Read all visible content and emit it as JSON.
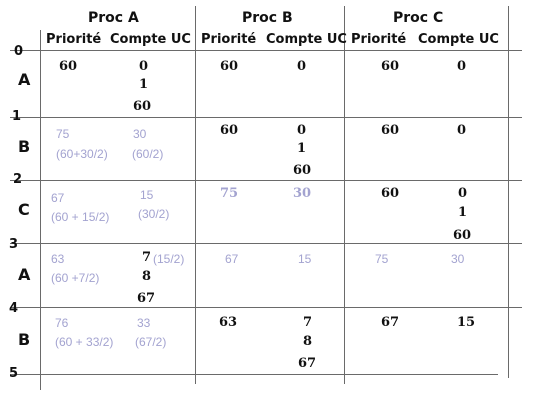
{
  "header": {
    "procs": [
      "Proc A",
      "Proc B",
      "Proc C"
    ],
    "priority_label": "Priorité",
    "cpu_label": "Compte UC"
  },
  "ticks": [
    "0",
    "1",
    "2",
    "3",
    "4",
    "5"
  ],
  "rows": [
    {
      "process": "A",
      "A": {
        "prio": [
          "60"
        ],
        "cpu": [
          "0",
          "1",
          "60"
        ]
      },
      "B": {
        "prio": [
          "60"
        ],
        "cpu": [
          "0"
        ]
      },
      "C": {
        "prio": [
          "60"
        ],
        "cpu": [
          "0"
        ]
      }
    },
    {
      "process": "B",
      "A": {
        "prio": [
          "75",
          "(60+30/2)"
        ],
        "cpu": [
          "30",
          "(60/2)"
        ]
      },
      "B": {
        "prio": [
          "60"
        ],
        "cpu": [
          "0",
          "1",
          "60"
        ]
      },
      "C": {
        "prio": [
          "60"
        ],
        "cpu": [
          "0"
        ]
      }
    },
    {
      "process": "C",
      "A": {
        "prio": [
          "67",
          "(60 + 15/2)"
        ],
        "cpu": [
          "15",
          "(30/2)"
        ]
      },
      "B": {
        "prio": [
          "75"
        ],
        "cpu": [
          "30"
        ]
      },
      "C": {
        "prio": [
          "60"
        ],
        "cpu": [
          "0",
          "1",
          "60"
        ]
      }
    },
    {
      "process": "A",
      "A": {
        "prio": [
          "63",
          "(60 +7/2)"
        ],
        "cpu": [
          "7",
          "(15/2)",
          "8",
          "67"
        ]
      },
      "B": {
        "prio": [
          "67"
        ],
        "cpu": [
          "15"
        ]
      },
      "C": {
        "prio": [
          "75"
        ],
        "cpu": [
          "30"
        ]
      }
    },
    {
      "process": "B",
      "A": {
        "prio": [
          "76",
          "(60 + 33/2)"
        ],
        "cpu": [
          "33",
          "(67/2)"
        ]
      },
      "B": {
        "prio": [
          "63"
        ],
        "cpu": [
          "7",
          "8",
          "67"
        ]
      },
      "C": {
        "prio": [
          "67"
        ],
        "cpu": [
          "15"
        ]
      }
    }
  ],
  "colors": {
    "active": "#111111",
    "recomputed": "#a3a3d0",
    "rule": "#6a6a6a"
  }
}
